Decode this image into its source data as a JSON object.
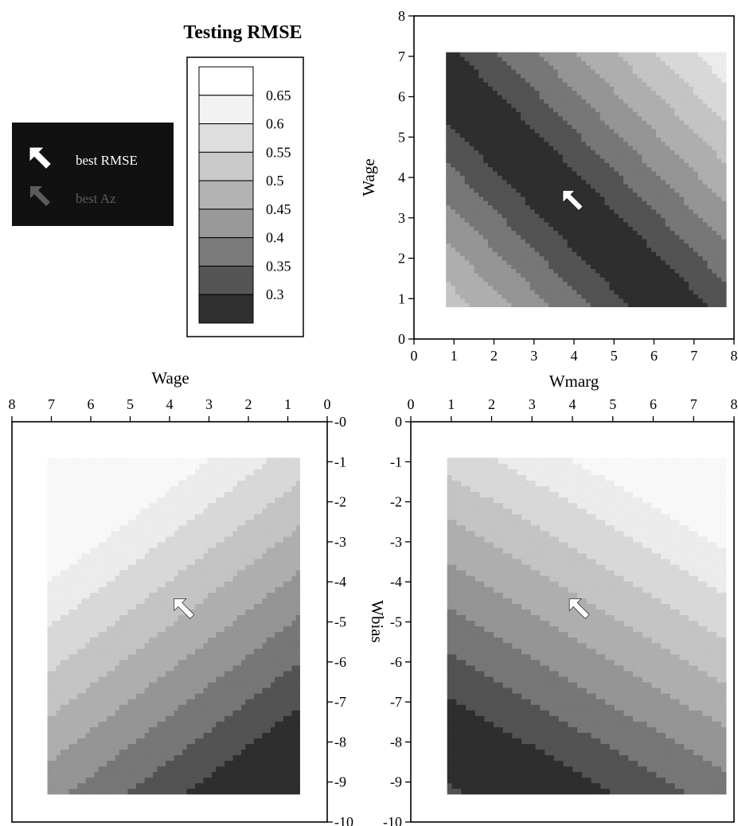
{
  "colorbar": {
    "title": "Testing RMSE",
    "levels": [
      "0.65",
      "0.6",
      "0.55",
      "0.5",
      "0.45",
      "0.4",
      "0.35",
      "0.3"
    ],
    "colors": [
      "#ffffff",
      "#f2f2f2",
      "#dedede",
      "#c9c9c9",
      "#b3b3b3",
      "#999999",
      "#7a7a7a",
      "#555555",
      "#2f2f2f"
    ]
  },
  "legend": {
    "items": [
      {
        "label": "best RMSE",
        "icon": "white-arrow-icon"
      },
      {
        "label": "best Az",
        "icon": "gray-arrow-icon"
      }
    ],
    "colors": {
      "background": "#111111",
      "rmse": "#ffffff",
      "az": "#5c5c5c"
    }
  },
  "chart_data": [
    {
      "type": "heatmap",
      "xlabel": "Wmarg",
      "ylabel": "Wage",
      "xlim": [
        0,
        8
      ],
      "ylim": [
        0,
        8
      ],
      "x_ticks": [
        "0",
        "1",
        "2",
        "3",
        "4",
        "5",
        "6",
        "7",
        "8"
      ],
      "y_ticks": [
        "0",
        "1",
        "2",
        "3",
        "4",
        "5",
        "6",
        "7",
        "8"
      ],
      "data_extent": {
        "x": [
          0.8,
          7.8
        ],
        "y": [
          0.8,
          7.1
        ]
      },
      "band_model": {
        "a": 1.0,
        "b": 1.0,
        "c": -7.2,
        "s": 0.7
      },
      "best_rmse": {
        "x": 4.0,
        "y": 3.4
      }
    },
    {
      "type": "heatmap",
      "xlabel": "Wage",
      "ylabel": "",
      "xlim": [
        8,
        0
      ],
      "ylim": [
        -10,
        0
      ],
      "x_ticks": [
        "8",
        "7",
        "6",
        "5",
        "4",
        "3",
        "2",
        "1",
        "0"
      ],
      "y_ticks": [
        "-0",
        "-1",
        "-2",
        "-3",
        "-4",
        "-5",
        "-6",
        "-7",
        "-8",
        "-9",
        "-10"
      ],
      "data_extent": {
        "x": [
          0.7,
          7.1
        ],
        "y": [
          -9.3,
          -0.9
        ]
      },
      "band_model": {
        "a": 0.75,
        "b": 1.0,
        "c": 7.7,
        "s": 0.9
      },
      "best_rmse": {
        "x": 3.6,
        "y": -4.7
      }
    },
    {
      "type": "heatmap",
      "xlabel": "",
      "ylabel": "Wbias",
      "xlim": [
        0,
        8
      ],
      "ylim": [
        -10,
        0
      ],
      "x_ticks": [
        "0",
        "1",
        "2",
        "3",
        "4",
        "5",
        "6",
        "7",
        "8"
      ],
      "y_ticks": [
        "0",
        "-1",
        "-2",
        "-3",
        "-4",
        "-5",
        "-6",
        "-7",
        "-8",
        "-9",
        "-10"
      ],
      "data_extent": {
        "x": [
          0.9,
          7.8
        ],
        "y": [
          -9.3,
          -0.9
        ]
      },
      "band_model": {
        "a": 0.6,
        "b": 1.0,
        "c": 7.4,
        "s": 0.95
      },
      "best_rmse": {
        "x": 4.2,
        "y": -4.7
      }
    }
  ]
}
